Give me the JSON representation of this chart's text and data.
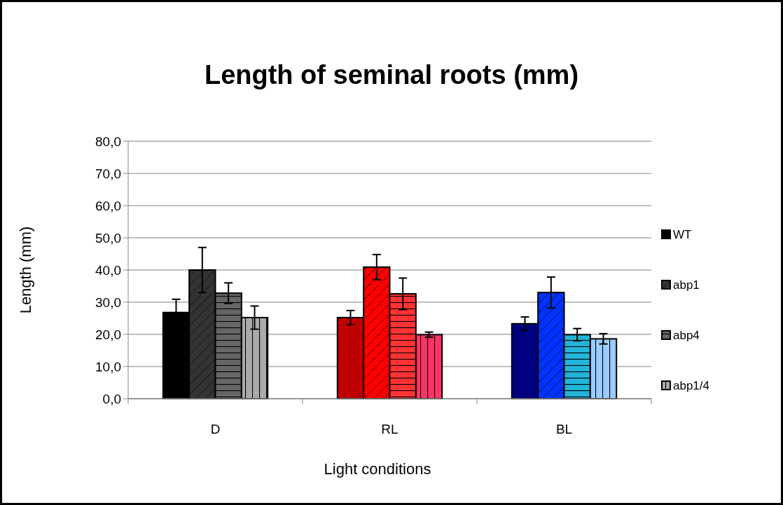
{
  "chart_data": {
    "type": "bar",
    "title": "Length of seminal roots (mm)",
    "xlabel": "Light conditions",
    "ylabel": "Length (mm)",
    "categories": [
      "D",
      "RL",
      "BL"
    ],
    "series": [
      {
        "name": "WT",
        "colors": [
          "#000000",
          "#c00000",
          "#000080"
        ],
        "values": [
          26.8,
          25.2,
          23.3
        ],
        "errors": [
          4.1,
          2.2,
          2.1
        ]
      },
      {
        "name": "abp1",
        "colors": [
          "#333333",
          "#ff0000",
          "#0033ff"
        ],
        "values": [
          40.0,
          40.9,
          33.0
        ],
        "errors": [
          7.0,
          3.9,
          4.8
        ]
      },
      {
        "name": "abp4",
        "colors": [
          "#666666",
          "#ff3333",
          "#22b4d8"
        ],
        "values": [
          32.8,
          32.6,
          19.9
        ],
        "errors": [
          3.2,
          4.9,
          1.9
        ]
      },
      {
        "name": "abp1/4",
        "colors": [
          "#aaaaaa",
          "#ff3366",
          "#99ccff"
        ],
        "values": [
          25.2,
          19.9,
          18.6
        ],
        "errors": [
          3.6,
          0.8,
          1.6
        ]
      }
    ],
    "ylim": [
      0,
      80
    ],
    "yticks": [
      {
        "value": 0,
        "label": "0,0"
      },
      {
        "value": 10,
        "label": "10,0"
      },
      {
        "value": 20,
        "label": "20,0"
      },
      {
        "value": 30,
        "label": "30,0"
      },
      {
        "value": 40,
        "label": "40,0"
      },
      {
        "value": 50,
        "label": "50,0"
      },
      {
        "value": 60,
        "label": "60,0"
      },
      {
        "value": 70,
        "label": "70,0"
      },
      {
        "value": 80,
        "label": "80,0"
      }
    ],
    "grid": "y",
    "legend": "right"
  }
}
